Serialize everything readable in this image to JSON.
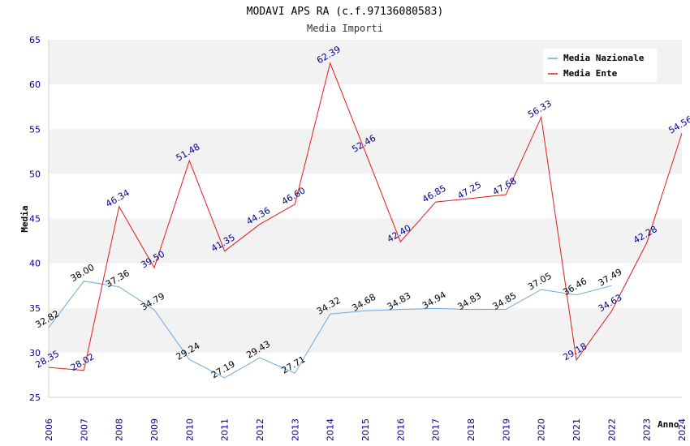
{
  "chart_data": {
    "type": "line",
    "title": "MODAVI APS RA (c.f.97136080583)",
    "subtitle": "Media Importi",
    "ylabel": "Media",
    "xlabel": "Anno",
    "ylim": [
      25,
      65
    ],
    "yticks": [
      "25",
      "30",
      "35",
      "40",
      "45",
      "50",
      "55",
      "60",
      "65"
    ],
    "categories": [
      "2006",
      "2007",
      "2008",
      "2009",
      "2010",
      "2011",
      "2012",
      "2013",
      "2014",
      "2015",
      "2016",
      "2017",
      "2018",
      "2019",
      "2020",
      "2021",
      "2022",
      "2023",
      "2024"
    ],
    "series": [
      {
        "name": "Media Nazionale",
        "color": "#6fa8dc",
        "values": [
          32.82,
          38.0,
          37.36,
          34.79,
          29.24,
          27.19,
          29.43,
          27.71,
          34.32,
          34.68,
          34.83,
          34.94,
          34.83,
          34.85,
          37.05,
          36.46,
          37.49,
          null,
          null
        ],
        "labels": [
          "32.82",
          "38.00",
          "37.36",
          "34.79",
          "29.24",
          "27.19",
          "29.43",
          "27.71",
          "34.32",
          "34.68",
          "34.83",
          "34.94",
          "34.83",
          "34.85",
          "37.05",
          "36.46",
          "37.49",
          null,
          null
        ]
      },
      {
        "name": "Media Ente",
        "color": "#e31a1c",
        "values": [
          28.35,
          28.02,
          46.34,
          39.5,
          51.48,
          41.35,
          44.36,
          46.6,
          62.39,
          52.46,
          42.4,
          46.85,
          47.25,
          47.68,
          56.33,
          29.18,
          34.63,
          42.28,
          54.56
        ],
        "labels": [
          "28.35",
          "28.02",
          "46.34",
          "39.50",
          "51.48",
          "41.35",
          "44.36",
          "46.60",
          "62.39",
          "52.46",
          "42.40",
          "46.85",
          "47.25",
          "47.68",
          "56.33",
          "29.18",
          "34.63",
          "42.28",
          "54.56"
        ]
      }
    ],
    "legend": "top-right",
    "grid": "alternating horizontal bands"
  }
}
